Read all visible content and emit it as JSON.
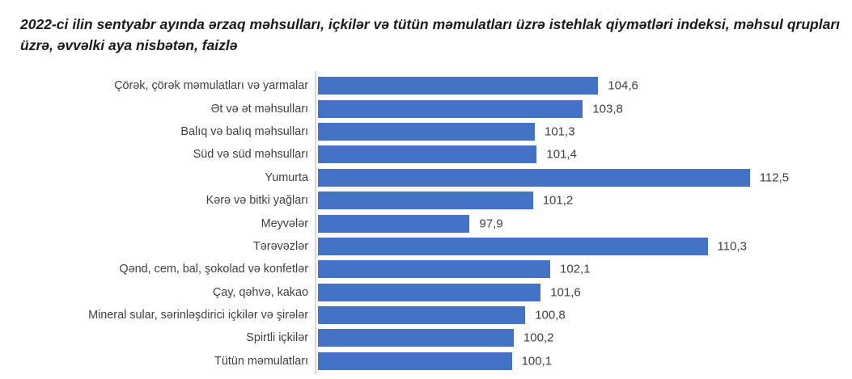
{
  "title": "2022-ci ilin sentyabr ayında ərzaq məhsulları, içkilər və tütün məmulatları üzrə istehlak qiymətləri indeksi, məhsul qrupları üzrə, əvvəlki aya nisbətən, faizlə",
  "chart_data": {
    "type": "bar",
    "orientation": "horizontal",
    "title": "2022-ci ilin sentyabr ayında ərzaq məhsulları, içkilər və tütün məmulatları üzrə istehlak qiymətləri indeksi, məhsul qrupları üzrə, əvvəlki aya nisbətən, faizlə",
    "categories": [
      "Çörək, çörək məmulatları və yarmalar",
      "Ət və ət məhsulları",
      "Balıq və balıq məhsulları",
      "Süd və süd məhsulları",
      "Yumurta",
      "Kərə və bitki yağları",
      "Meyvələr",
      "Tərəvəzlər",
      "Qənd, cem, bal, şokolad və konfetlər",
      "Çay, qəhvə, kakao",
      "Mineral sular, sərinləşdirici içkilər və şirələr",
      "Spirtli içkilər",
      "Tütün məmulatları"
    ],
    "values": [
      104.6,
      103.8,
      101.3,
      101.4,
      112.5,
      101.2,
      97.9,
      110.3,
      102.1,
      101.6,
      100.8,
      100.2,
      100.1
    ],
    "value_labels": [
      "104,6",
      "103,8",
      "101,3",
      "101,4",
      "112,5",
      "101,2",
      "97,9",
      "110,3",
      "102,1",
      "101,6",
      "100,8",
      "100,2",
      "100,1"
    ],
    "xlim": [
      90,
      115
    ],
    "grid": false,
    "legend": false,
    "colors": {
      "bar": "#4472C4",
      "axis_line": "#D7D7D7",
      "label_text": "#404040",
      "title_text": "#1B1B1B"
    }
  }
}
